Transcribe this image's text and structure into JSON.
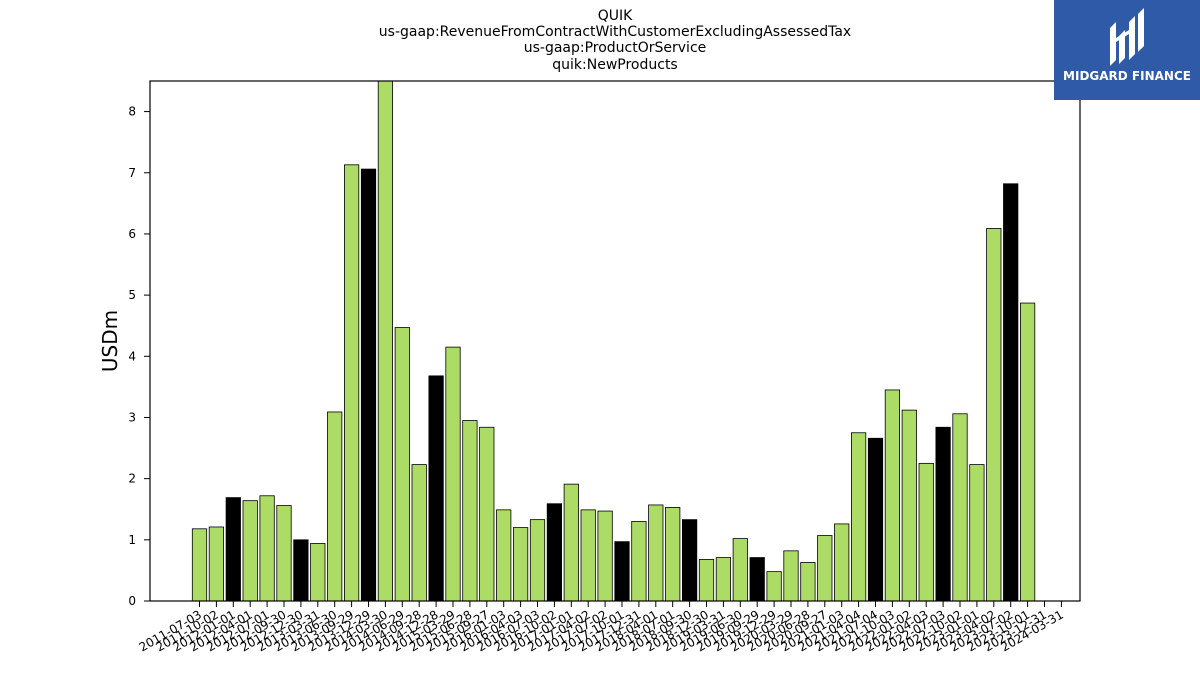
{
  "chart_data": {
    "type": "bar",
    "title_lines": [
      "QUIK",
      "us-gaap:RevenueFromContractWithCustomerExcludingAssessedTax",
      "us-gaap:ProductOrService",
      "quik:NewProducts"
    ],
    "xlabel": "",
    "ylabel": "USDm",
    "ylim": [
      0,
      8.5
    ],
    "yticks": [
      0,
      1,
      2,
      3,
      4,
      5,
      6,
      7,
      8
    ],
    "grid": false,
    "colors": {
      "quarter": "#addc66",
      "annual": "#000000",
      "edge": "#000000"
    },
    "categories": [
      "2011-07-03",
      "2011-10-02",
      "2012-01-01",
      "2012-04-01",
      "2012-07-01",
      "2012-09-30",
      "2012-12-30",
      "2013-03-31",
      "2013-06-30",
      "2013-09-29",
      "2013-12-29",
      "2014-03-30",
      "2014-06-29",
      "2014-09-28",
      "2014-12-28",
      "2015-03-29",
      "2015-06-28",
      "2015-09-27",
      "2016-01-03",
      "2016-04-03",
      "2016-07-03",
      "2016-10-02",
      "2017-01-01",
      "2017-04-02",
      "2017-07-02",
      "2017-10-01",
      "2017-12-31",
      "2018-04-01",
      "2018-07-01",
      "2018-09-30",
      "2018-12-30",
      "2019-03-31",
      "2019-06-30",
      "2019-09-29",
      "2019-12-29",
      "2020-03-29",
      "2020-06-28",
      "2020-09-27",
      "2021-01-03",
      "2021-04-04",
      "2021-07-04",
      "2021-10-03",
      "2022-01-02",
      "2022-04-03",
      "2022-07-03",
      "2022-10-02",
      "2023-01-01",
      "2023-04-02",
      "2023-07-02",
      "2023-10-01",
      "2023-12-31",
      "2024-03-31"
    ],
    "values": [
      1.18,
      1.21,
      1.69,
      1.64,
      1.72,
      1.56,
      1.0,
      0.94,
      3.09,
      7.13,
      7.06,
      8.5,
      4.47,
      2.23,
      3.68,
      4.15,
      2.95,
      2.84,
      1.49,
      1.2,
      1.33,
      1.59,
      1.91,
      1.49,
      1.47,
      0.97,
      1.3,
      1.57,
      1.53,
      1.33,
      0.68,
      0.71,
      1.02,
      0.71,
      0.48,
      0.82,
      0.63,
      1.07,
      1.26,
      2.75,
      2.66,
      3.45,
      3.12,
      2.25,
      2.84,
      3.06,
      2.23,
      6.09,
      6.82,
      4.87,
      0,
      0
    ],
    "highlight": [
      false,
      false,
      true,
      false,
      false,
      false,
      true,
      false,
      false,
      false,
      true,
      false,
      false,
      false,
      true,
      false,
      false,
      false,
      false,
      false,
      false,
      true,
      false,
      false,
      false,
      true,
      false,
      false,
      false,
      true,
      false,
      false,
      false,
      true,
      false,
      false,
      false,
      false,
      false,
      false,
      true,
      false,
      false,
      false,
      true,
      false,
      false,
      false,
      true,
      false,
      false,
      false
    ]
  },
  "logo": {
    "text": "MIDGARD FINANCE"
  }
}
